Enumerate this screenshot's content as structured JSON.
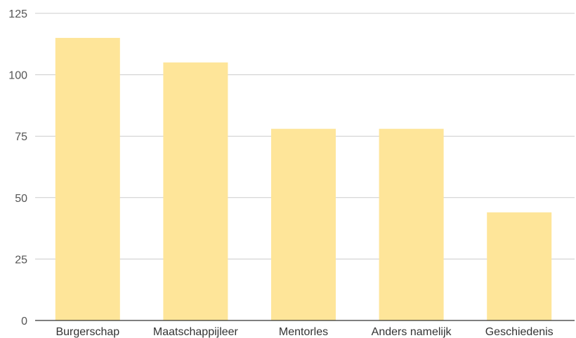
{
  "chart_data": {
    "type": "bar",
    "categories": [
      "Burgerschap",
      "Maatschappijleer",
      "Mentorles",
      "Anders namelijk",
      "Geschiedenis"
    ],
    "values": [
      115,
      105,
      78,
      78,
      44
    ],
    "yticks": [
      "0",
      "25",
      "50",
      "75",
      "100",
      "125"
    ],
    "ylim": [
      0,
      125
    ],
    "grid": true,
    "legend": "none",
    "bar_color": "#fee599"
  }
}
